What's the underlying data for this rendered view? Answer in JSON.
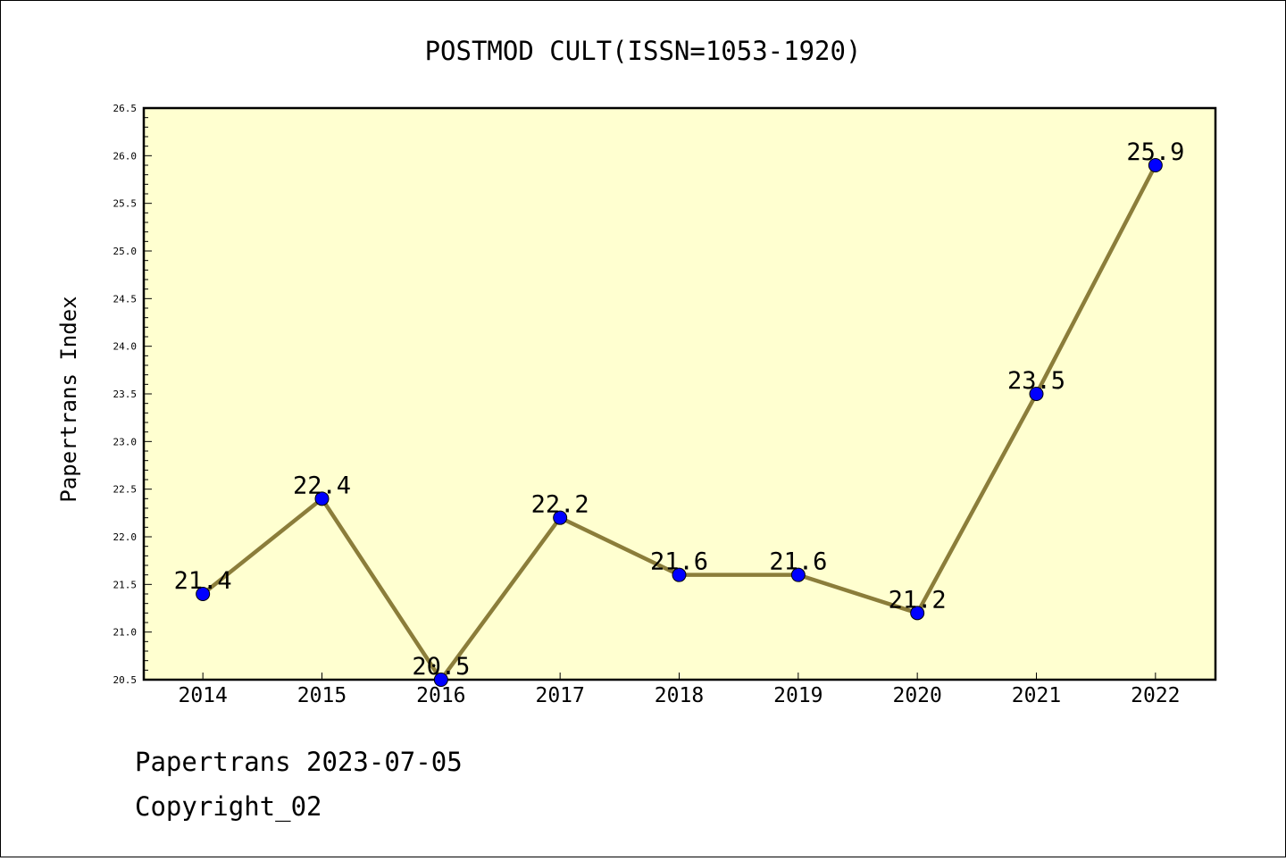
{
  "chart_data": {
    "type": "line",
    "title": "POSTMOD CULT(ISSN=1053-1920)",
    "xlabel": "",
    "ylabel": "Papertrans Index",
    "categories": [
      "2014",
      "2015",
      "2016",
      "2017",
      "2018",
      "2019",
      "2020",
      "2021",
      "2022"
    ],
    "values": [
      21.4,
      22.4,
      20.5,
      22.2,
      21.6,
      21.6,
      21.2,
      23.5,
      25.9
    ],
    "data_labels": [
      "21.4",
      "22.4",
      "20.5",
      "22.2",
      "21.6",
      "21.6",
      "21.2",
      "23.5",
      "25.9"
    ],
    "ylim": [
      20.5,
      26.5
    ],
    "yticks": [
      "20.5",
      "21.0",
      "21.5",
      "22.0",
      "22.5",
      "23.0",
      "23.5",
      "24.0",
      "24.5",
      "25.0",
      "25.5",
      "26.0",
      "26.5"
    ],
    "grid": false,
    "legend": "none",
    "colors": {
      "line": "#8b7d3a",
      "marker": "#0000ff",
      "plot_background": "#ffffd0"
    }
  },
  "footer": {
    "source": "Papertrans 2023-07-05",
    "copyright": "Copyright_02"
  }
}
